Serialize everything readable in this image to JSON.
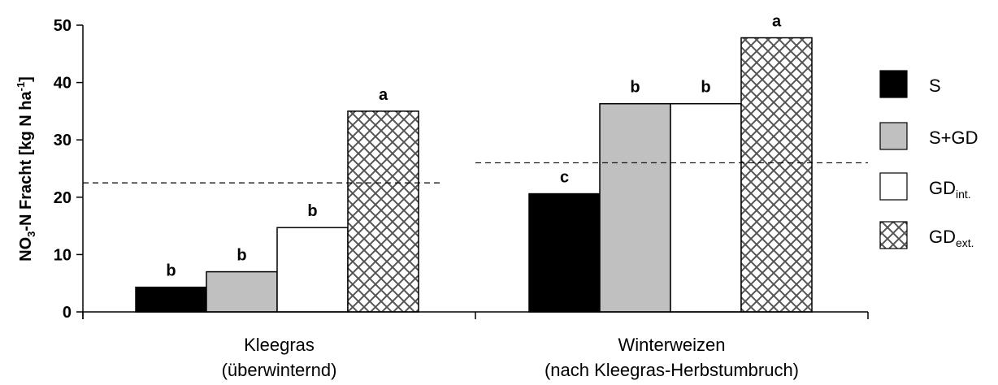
{
  "chart_data": {
    "type": "bar",
    "ylabel_parts": [
      "NO",
      "3",
      "-N Fracht [kg N ha",
      "-1",
      "]"
    ],
    "ylim": [
      0,
      50
    ],
    "yticks": [
      "0",
      "10",
      "20",
      "30",
      "40",
      "50"
    ],
    "groups": [
      {
        "label_lines": [
          "Kleegras",
          "(überwinternd)"
        ],
        "values": [
          4.3,
          7.0,
          14.7,
          35.0
        ],
        "letters": [
          "b",
          "b",
          "b",
          "a"
        ],
        "threshold": 22.5
      },
      {
        "label_lines": [
          "Winterweizen",
          "(nach Kleegras-Herbstumbruch)"
        ],
        "values": [
          20.6,
          36.3,
          36.3,
          47.8
        ],
        "letters": [
          "c",
          "b",
          "b",
          "a"
        ],
        "threshold": 26.0
      }
    ],
    "series": [
      {
        "name": "S",
        "sub": "",
        "fill": "#000000"
      },
      {
        "name": "S+GD",
        "sub": "",
        "fill": "#c0c0c0"
      },
      {
        "name": "GD",
        "sub": "int.",
        "fill": "#ffffff"
      },
      {
        "name": "GD",
        "sub": "ext.",
        "fill": "crosshatch"
      }
    ],
    "grid": false,
    "legend_position": "right"
  }
}
